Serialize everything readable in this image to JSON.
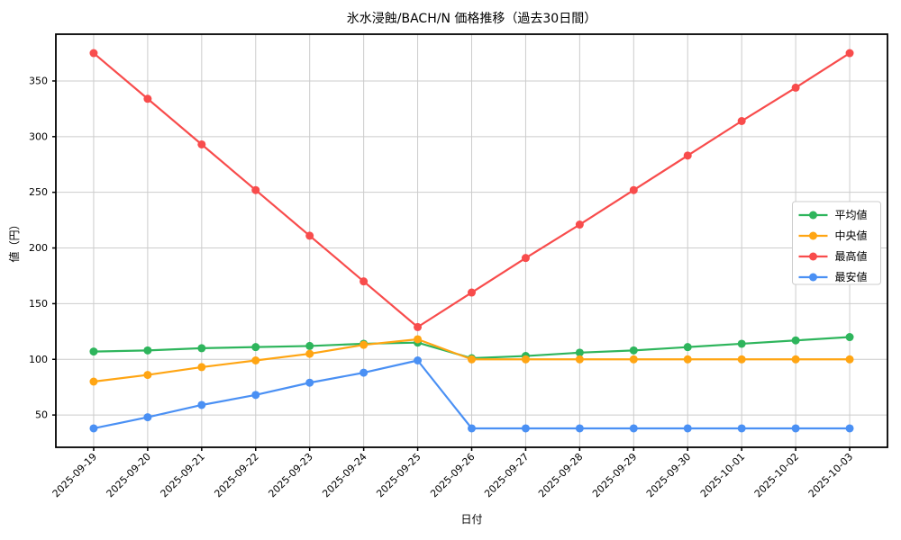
{
  "chart_data": {
    "type": "line",
    "title": "氷水浸蝕/BACH/N 価格推移（過去30日間）",
    "xlabel": "日付",
    "ylabel": "値（円）",
    "categories": [
      "2025-09-19",
      "2025-09-20",
      "2025-09-21",
      "2025-09-22",
      "2025-09-23",
      "2025-09-24",
      "2025-09-25",
      "2025-09-26",
      "2025-09-27",
      "2025-09-28",
      "2025-09-29",
      "2025-09-30",
      "2025-10-01",
      "2025-10-02",
      "2025-10-03"
    ],
    "series": [
      {
        "key": "average",
        "name": "平均値",
        "color": "#2eb55c",
        "values": [
          107,
          108,
          110,
          111,
          112,
          114,
          115,
          101,
          103,
          106,
          108,
          111,
          114,
          117,
          120
        ]
      },
      {
        "key": "median",
        "name": "中央値",
        "color": "#ffa513",
        "values": [
          80,
          86,
          93,
          99,
          105,
          113,
          118,
          100,
          100,
          100,
          100,
          100,
          100,
          100,
          100
        ]
      },
      {
        "key": "max",
        "name": "最高値",
        "color": "#f84c4c",
        "values": [
          375,
          334,
          293,
          252,
          211,
          170,
          129,
          160,
          191,
          221,
          252,
          283,
          314,
          344,
          375
        ]
      },
      {
        "key": "min",
        "name": "最安値",
        "color": "#4a90f4",
        "values": [
          38,
          48,
          59,
          68,
          79,
          88,
          99,
          38,
          38,
          38,
          38,
          38,
          38,
          38,
          38
        ]
      }
    ],
    "yticks": [
      50,
      100,
      150,
      200,
      250,
      300,
      350
    ],
    "ylim": [
      21,
      392
    ],
    "xlim": [
      -0.7,
      14.7
    ],
    "grid": true,
    "grid_color": "#cccccc",
    "spine_color": "#000000",
    "background": "#ffffff",
    "legend_position": "center-right"
  }
}
